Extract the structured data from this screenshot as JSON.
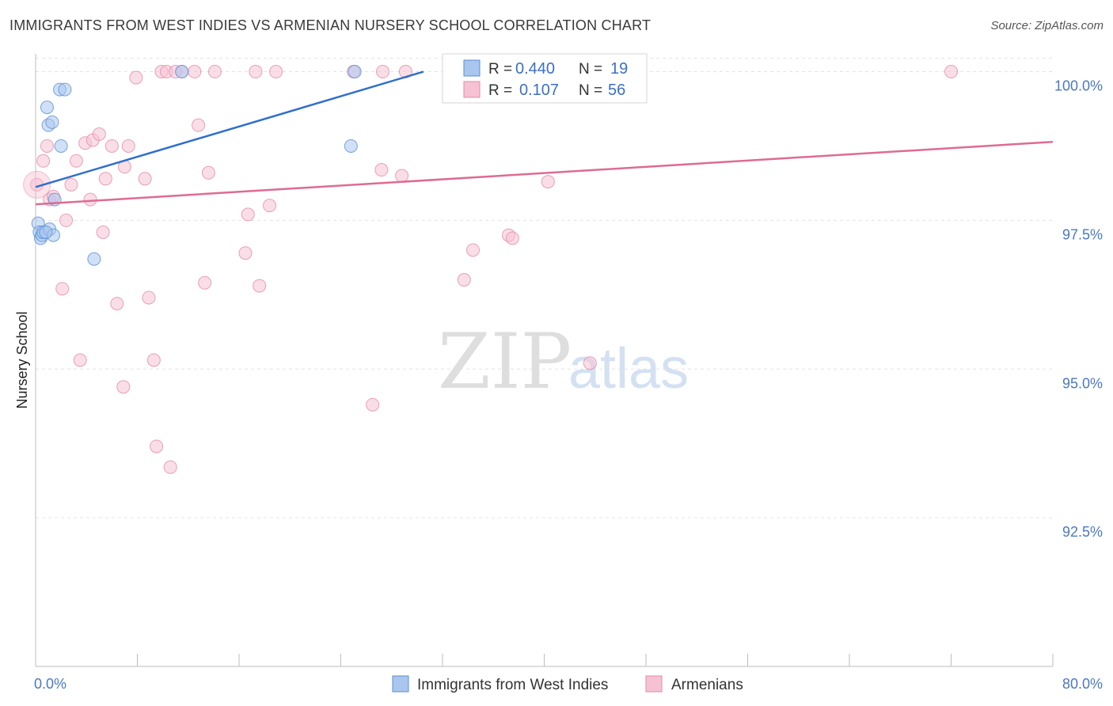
{
  "title": "IMMIGRANTS FROM WEST INDIES VS ARMENIAN NURSERY SCHOOL CORRELATION CHART",
  "source": "Source: ZipAtlas.com",
  "watermark": {
    "zip": "ZIP",
    "atlas": "atlas"
  },
  "colors": {
    "blue_fill": "#a9c6ee",
    "blue_stroke": "#5b8fd6",
    "blue_line": "#2f6fcc",
    "pink_fill": "#f6c2d3",
    "pink_stroke": "#e58aa8",
    "pink_line": "#de6b93",
    "grid": "#e3e3e3",
    "tick_text": "#4a78c4"
  },
  "legend": {
    "series": [
      {
        "r_label": "R =",
        "r_value": "0.440",
        "n_label": "N =",
        "n_value": "19"
      },
      {
        "r_label": "R =",
        "r_value": "0.107",
        "n_label": "N =",
        "n_value": "56"
      }
    ]
  },
  "chart_data": {
    "type": "scatter",
    "title": "IMMIGRANTS FROM WEST INDIES VS ARMENIAN NURSERY SCHOOL CORRELATION CHART",
    "xlabel": "",
    "ylabel": "Nursery School",
    "xlim": [
      0,
      80
    ],
    "ylim": [
      90.0,
      100.3
    ],
    "x_tick_labels": [
      "0.0%",
      "80.0%"
    ],
    "y_ticks": [
      92.5,
      95.0,
      97.5,
      100.0
    ],
    "y_tick_labels": [
      "92.5%",
      "95.0%",
      "97.5%",
      "100.0%"
    ],
    "grid": true,
    "legend_position": "top-center",
    "series": [
      {
        "name": "Immigrants from West Indies",
        "color": "#a9c6ee",
        "trend": {
          "x": [
            0,
            30.5
          ],
          "y": [
            98.06,
            100.0
          ]
        },
        "points": [
          {
            "x": 0.2,
            "y": 97.45
          },
          {
            "x": 0.3,
            "y": 97.3
          },
          {
            "x": 0.4,
            "y": 97.2
          },
          {
            "x": 0.5,
            "y": 97.25
          },
          {
            "x": 0.6,
            "y": 97.3
          },
          {
            "x": 0.9,
            "y": 99.4
          },
          {
            "x": 1.0,
            "y": 99.1
          },
          {
            "x": 1.1,
            "y": 97.35
          },
          {
            "x": 1.3,
            "y": 99.15
          },
          {
            "x": 1.4,
            "y": 97.25
          },
          {
            "x": 1.5,
            "y": 97.85
          },
          {
            "x": 1.9,
            "y": 99.7
          },
          {
            "x": 2.0,
            "y": 98.75
          },
          {
            "x": 2.3,
            "y": 99.7
          },
          {
            "x": 4.6,
            "y": 96.85
          },
          {
            "x": 11.5,
            "y": 100.0
          },
          {
            "x": 24.8,
            "y": 98.75
          },
          {
            "x": 25.1,
            "y": 100.0
          },
          {
            "x": 0.8,
            "y": 97.3
          }
        ]
      },
      {
        "name": "Armenians",
        "color": "#f6c2d3",
        "trend": {
          "x": [
            0,
            80
          ],
          "y": [
            97.77,
            98.82
          ]
        },
        "points": [
          {
            "x": 0.1,
            "y": 98.1
          },
          {
            "x": 0.6,
            "y": 98.5
          },
          {
            "x": 0.9,
            "y": 98.75
          },
          {
            "x": 1.1,
            "y": 97.85
          },
          {
            "x": 1.4,
            "y": 97.9
          },
          {
            "x": 2.1,
            "y": 96.35
          },
          {
            "x": 2.4,
            "y": 97.5
          },
          {
            "x": 2.8,
            "y": 98.1
          },
          {
            "x": 3.2,
            "y": 98.5
          },
          {
            "x": 3.5,
            "y": 95.15
          },
          {
            "x": 3.9,
            "y": 98.8
          },
          {
            "x": 4.3,
            "y": 97.85
          },
          {
            "x": 4.5,
            "y": 98.85
          },
          {
            "x": 5.0,
            "y": 98.95
          },
          {
            "x": 5.3,
            "y": 97.3
          },
          {
            "x": 5.5,
            "y": 98.2
          },
          {
            "x": 6.0,
            "y": 98.75
          },
          {
            "x": 6.4,
            "y": 96.1
          },
          {
            "x": 6.9,
            "y": 94.7
          },
          {
            "x": 7.0,
            "y": 98.4
          },
          {
            "x": 7.3,
            "y": 98.75
          },
          {
            "x": 7.9,
            "y": 99.9
          },
          {
            "x": 8.6,
            "y": 98.2
          },
          {
            "x": 8.9,
            "y": 96.2
          },
          {
            "x": 9.3,
            "y": 95.15
          },
          {
            "x": 9.5,
            "y": 93.7
          },
          {
            "x": 9.9,
            "y": 100.0
          },
          {
            "x": 10.3,
            "y": 100.0
          },
          {
            "x": 10.6,
            "y": 93.35
          },
          {
            "x": 11.0,
            "y": 100.0
          },
          {
            "x": 11.5,
            "y": 100.0
          },
          {
            "x": 12.5,
            "y": 100.0
          },
          {
            "x": 12.8,
            "y": 99.1
          },
          {
            "x": 13.3,
            "y": 96.45
          },
          {
            "x": 13.6,
            "y": 98.3
          },
          {
            "x": 14.1,
            "y": 100.0
          },
          {
            "x": 16.5,
            "y": 96.95
          },
          {
            "x": 16.7,
            "y": 97.6
          },
          {
            "x": 17.3,
            "y": 100.0
          },
          {
            "x": 17.6,
            "y": 96.4
          },
          {
            "x": 18.4,
            "y": 97.75
          },
          {
            "x": 18.9,
            "y": 100.0
          },
          {
            "x": 25.0,
            "y": 100.0
          },
          {
            "x": 26.5,
            "y": 94.4
          },
          {
            "x": 27.2,
            "y": 98.35
          },
          {
            "x": 27.3,
            "y": 100.0
          },
          {
            "x": 28.8,
            "y": 98.25
          },
          {
            "x": 29.1,
            "y": 100.0
          },
          {
            "x": 32.8,
            "y": 100.0
          },
          {
            "x": 33.7,
            "y": 96.5
          },
          {
            "x": 34.4,
            "y": 97.0
          },
          {
            "x": 37.2,
            "y": 97.25
          },
          {
            "x": 37.5,
            "y": 97.2
          },
          {
            "x": 40.3,
            "y": 98.15
          },
          {
            "x": 43.6,
            "y": 95.1
          },
          {
            "x": 72.0,
            "y": 100.0
          }
        ]
      }
    ]
  }
}
